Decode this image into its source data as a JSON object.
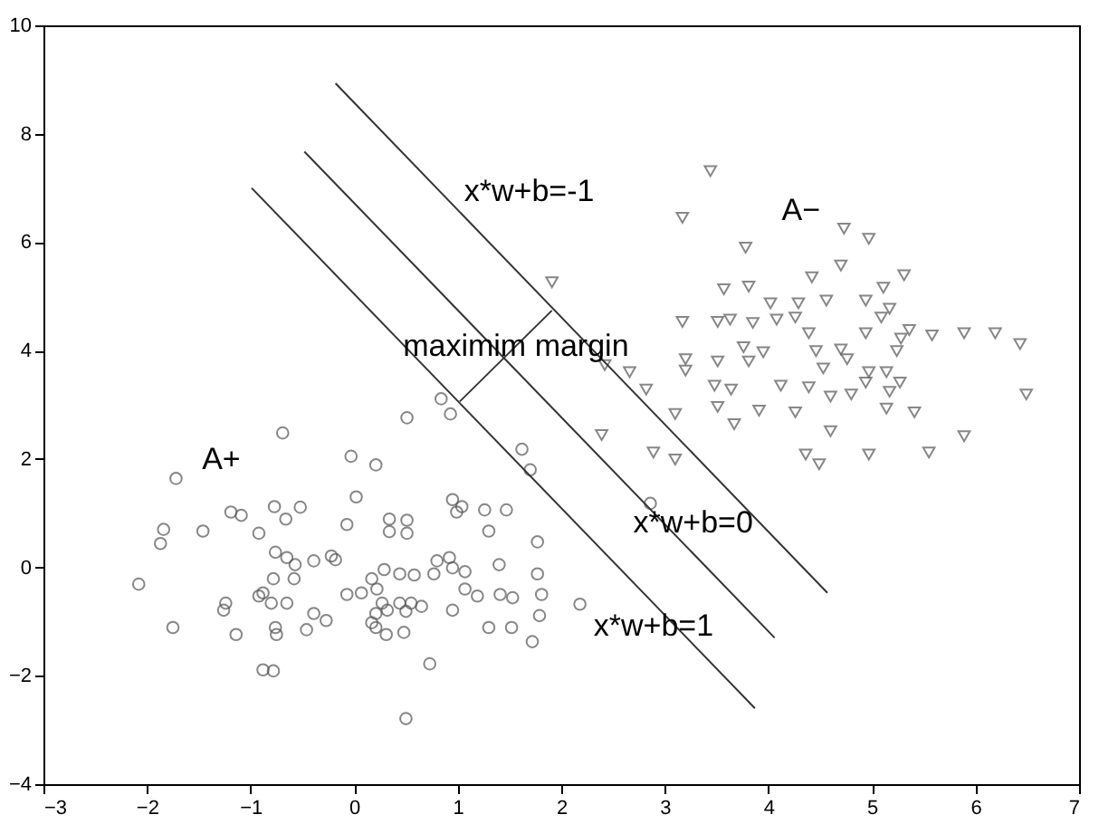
{
  "chart_data": {
    "type": "scatter",
    "xlim": [
      -3,
      7
    ],
    "ylim": [
      -4,
      10
    ],
    "xticks": [
      -3,
      -2,
      -1,
      0,
      1,
      2,
      3,
      4,
      5,
      6,
      7
    ],
    "yticks": [
      -4,
      -2,
      0,
      2,
      4,
      6,
      8,
      10
    ],
    "grid": false,
    "series": [
      {
        "name": "A+",
        "marker": "circle",
        "color": "#555555",
        "x": [
          -1.72,
          -0.69,
          -0.03,
          0.21,
          0.51,
          0.84,
          0.93,
          1.62,
          1.7,
          2.86,
          -1.84,
          -1.87,
          -1.46,
          -2.08,
          -1.75,
          -1.19,
          -1.09,
          -0.77,
          -0.52,
          -0.92,
          -0.66,
          -0.76,
          -0.65,
          -0.57,
          -0.58,
          -0.78,
          -0.88,
          -0.92,
          -0.65,
          -0.8,
          -1.24,
          -1.26,
          -1.14,
          -0.76,
          -0.75,
          -0.88,
          -0.78,
          -0.39,
          -0.46,
          -0.27,
          -0.39,
          -0.22,
          -0.18,
          0.02,
          -0.07,
          -0.07,
          0.07,
          0.17,
          0.29,
          0.34,
          0.34,
          0.51,
          0.51,
          0.44,
          0.58,
          0.22,
          0.27,
          0.21,
          0.17,
          0.32,
          0.44,
          0.55,
          0.65,
          0.5,
          0.21,
          0.31,
          0.48,
          0.73,
          0.5,
          0.77,
          0.8,
          0.92,
          0.95,
          1.07,
          0.95,
          1.07,
          1.19,
          0.95,
          0.99,
          1.04,
          1.26,
          1.47,
          1.3,
          1.4,
          1.41,
          1.53,
          1.3,
          1.52,
          1.77,
          1.77,
          1.81,
          1.79,
          1.72,
          2.18
        ],
        "values": [
          1.64,
          2.48,
          2.05,
          1.89,
          2.76,
          3.11,
          2.83,
          2.18,
          1.8,
          1.18,
          0.7,
          0.44,
          0.67,
          -0.31,
          -1.11,
          1.02,
          0.96,
          1.12,
          1.11,
          0.63,
          0.89,
          0.28,
          0.18,
          0.05,
          -0.21,
          -0.21,
          -0.47,
          -0.53,
          -0.66,
          -0.66,
          -0.66,
          -0.79,
          -1.24,
          -1.11,
          -1.24,
          -1.89,
          -1.91,
          -0.85,
          -1.15,
          -0.98,
          0.12,
          0.21,
          0.14,
          1.3,
          0.79,
          -0.5,
          -0.47,
          -0.21,
          -0.04,
          0.66,
          0.89,
          0.87,
          0.63,
          -0.12,
          -0.14,
          -0.4,
          -0.66,
          -0.85,
          -1.02,
          -0.79,
          -0.66,
          -0.66,
          -0.72,
          -0.81,
          -1.11,
          -1.24,
          -1.2,
          -1.78,
          -2.79,
          -0.12,
          0.12,
          0.18,
          -0.01,
          -0.08,
          -0.79,
          -0.4,
          -0.53,
          1.25,
          1.02,
          1.12,
          1.06,
          1.06,
          0.67,
          0.05,
          -0.5,
          -0.56,
          -1.11,
          -1.11,
          0.47,
          -0.12,
          -0.5,
          -0.89,
          -1.37,
          -0.68
        ]
      },
      {
        "name": "A−",
        "marker": "triangle",
        "color": "#555555",
        "x": [
          3.44,
          3.17,
          4.73,
          4.97,
          3.78,
          4.7,
          4.42,
          5.31,
          3.57,
          3.81,
          5.11,
          4.02,
          4.29,
          4.56,
          4.94,
          5.17,
          3.17,
          3.51,
          3.63,
          3.85,
          4.08,
          4.26,
          5.09,
          5.36,
          5.58,
          5.89,
          6.19,
          6.43,
          6.49,
          5.28,
          4.94,
          4.39,
          3.76,
          3.95,
          4.46,
          4.7,
          5.24,
          3.2,
          3.51,
          3.81,
          4.76,
          4.53,
          4.97,
          5.14,
          5.27,
          2.42,
          2.66,
          3.2,
          2.82,
          3.48,
          3.64,
          4.12,
          4.39,
          4.6,
          4.8,
          4.94,
          5.17,
          3.51,
          3.91,
          4.26,
          5.14,
          5.41,
          3.1,
          3.67,
          2.39,
          4.6,
          5.89,
          2.89,
          3.1,
          4.36,
          4.49,
          4.97,
          5.55,
          1.91
        ],
        "values": [
          7.31,
          6.45,
          6.25,
          6.06,
          5.9,
          5.57,
          5.35,
          5.39,
          5.13,
          5.18,
          5.16,
          4.87,
          4.87,
          4.92,
          4.92,
          4.77,
          4.53,
          4.53,
          4.57,
          4.51,
          4.57,
          4.61,
          4.61,
          4.38,
          4.28,
          4.32,
          4.32,
          4.12,
          3.19,
          4.22,
          4.32,
          4.32,
          4.06,
          3.97,
          3.99,
          4.02,
          3.99,
          3.84,
          3.8,
          3.8,
          3.84,
          3.67,
          3.6,
          3.6,
          3.41,
          3.73,
          3.6,
          3.63,
          3.28,
          3.35,
          3.28,
          3.35,
          3.32,
          3.15,
          3.19,
          3.41,
          3.24,
          2.96,
          2.89,
          2.86,
          2.93,
          2.86,
          2.83,
          2.64,
          2.44,
          2.51,
          2.42,
          2.12,
          1.99,
          2.08,
          1.9,
          2.08,
          2.12,
          5.26
        ]
      },
      {
        "name": "x*w+b=-1",
        "type": "line",
        "color": "#333333",
        "x": [
          -0.18,
          4.57
        ],
        "values": [
          8.93,
          -0.47
        ]
      },
      {
        "name": "x*w+b=0",
        "type": "line",
        "color": "#333333",
        "x": [
          -0.48,
          4.06
        ],
        "values": [
          7.67,
          -1.3
        ]
      },
      {
        "name": "x*w+b=1",
        "type": "line",
        "color": "#333333",
        "x": [
          -0.99,
          3.87
        ],
        "values": [
          7.0,
          -2.6
        ]
      },
      {
        "name": "maximim margin",
        "type": "line",
        "color": "#333333",
        "x": [
          1.02,
          1.91
        ],
        "values": [
          3.06,
          4.74
        ]
      }
    ]
  }
}
